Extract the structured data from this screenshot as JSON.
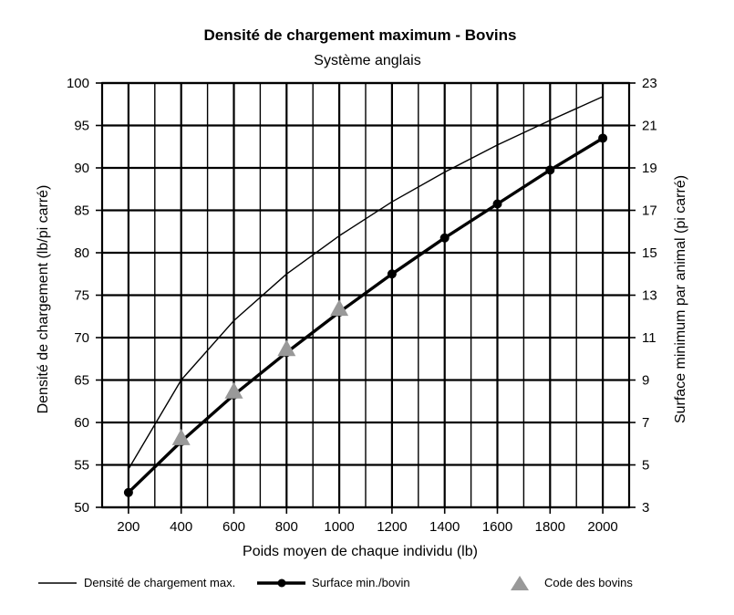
{
  "chart_data": {
    "type": "line",
    "title": "Densité de chargement maximum - Bovins",
    "subtitle": "Système anglais",
    "xlabel": "Poids moyen de chaque individu (lb)",
    "ylabel_left": "Densité de chargement (lb/pi carré)",
    "ylabel_right": "Surface minimum par animal (pi carré)",
    "xlim": [
      100,
      2100
    ],
    "ylim_left": [
      50,
      100
    ],
    "ylim_right": [
      3,
      23
    ],
    "x_ticks": [
      200,
      400,
      600,
      800,
      1000,
      1200,
      1400,
      1600,
      1800,
      2000
    ],
    "y_left_ticks": [
      50,
      55,
      60,
      65,
      70,
      75,
      80,
      85,
      90,
      95,
      100
    ],
    "y_right_ticks": [
      3,
      5,
      7,
      9,
      11,
      13,
      15,
      17,
      19,
      21,
      23
    ],
    "grid": true,
    "legend_position": "bottom",
    "series": [
      {
        "name": "Densité de chargement max.",
        "axis": "left",
        "style": "thin-line",
        "color": "#000000",
        "x": [
          200,
          400,
          600,
          800,
          1000,
          1200,
          1400,
          1600,
          1800,
          2000
        ],
        "y": [
          54.5,
          65,
          72,
          77.5,
          82,
          86,
          89.5,
          92.7,
          95.6,
          98.4
        ]
      },
      {
        "name": "Surface min./bovin",
        "axis": "right",
        "style": "thick-line-dots",
        "color": "#000000",
        "x": [
          200,
          400,
          600,
          800,
          1000,
          1200,
          1400,
          1600,
          1800,
          2000
        ],
        "y": [
          3.7,
          6.1,
          8.3,
          10.3,
          12.2,
          14.0,
          15.7,
          17.3,
          18.9,
          20.4
        ]
      },
      {
        "name": "Code des bovins",
        "axis": "right",
        "style": "triangles",
        "color": "#999999",
        "x": [
          400,
          600,
          800,
          1000
        ],
        "y": [
          6.1,
          8.3,
          10.3,
          12.2
        ]
      }
    ]
  }
}
